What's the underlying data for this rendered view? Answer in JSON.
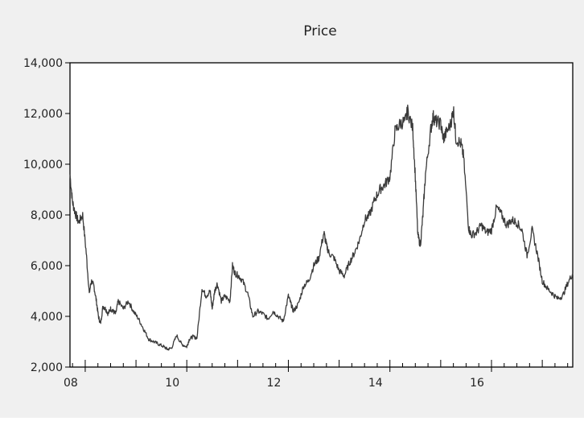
{
  "chart_data": {
    "type": "line",
    "title": "Price",
    "xlabel": "",
    "ylabel": "",
    "ylim": [
      2000,
      14000
    ],
    "xlim": [
      2007.7,
      2017.6
    ],
    "yticks": [
      2000,
      4000,
      6000,
      8000,
      10000,
      12000,
      14000
    ],
    "ytick_labels": [
      "2,000",
      "4,000",
      "6,000",
      "8,000",
      "10,000",
      "12,000",
      "14,000"
    ],
    "xticks": [
      2008,
      2010,
      2012,
      2014,
      2016
    ],
    "xtick_labels": [
      "08",
      "10",
      "12",
      "14",
      "16"
    ],
    "grid": false,
    "legend": "none",
    "colors": {
      "line": "#3a3a3a",
      "frame": "#000000",
      "panel": "#f0f0f0",
      "plot_bg": "#ffffff"
    },
    "series": [
      {
        "x": [
          2007.7,
          2007.75,
          2007.8,
          2007.87,
          2007.95,
          2008.02,
          2008.08,
          2008.12,
          2008.17,
          2008.22,
          2008.26,
          2008.3,
          2008.35,
          2008.4,
          2008.45,
          2008.5,
          2008.55,
          2008.6,
          2008.65,
          2008.75,
          2008.85,
          2008.95,
          2009.05,
          2009.15,
          2009.25,
          2009.35,
          2009.45,
          2009.55,
          2009.62,
          2009.7,
          2009.8,
          2009.9,
          2010.0,
          2010.05,
          2010.12,
          2010.2,
          2010.3,
          2010.38,
          2010.46,
          2010.5,
          2010.55,
          2010.6,
          2010.68,
          2010.75,
          2010.85,
          2010.9,
          2010.95,
          2011.02,
          2011.1,
          2011.2,
          2011.3,
          2011.4,
          2011.5,
          2011.6,
          2011.7,
          2011.8,
          2011.9,
          2012.0,
          2012.05,
          2012.1,
          2012.2,
          2012.3,
          2012.4,
          2012.5,
          2012.6,
          2012.7,
          2012.75,
          2012.8,
          2012.9,
          2013.0,
          2013.1,
          2013.2,
          2013.3,
          2013.4,
          2013.5,
          2013.6,
          2013.7,
          2013.8,
          2013.9,
          2014.0,
          2014.1,
          2014.2,
          2014.3,
          2014.35,
          2014.45,
          2014.5,
          2014.55,
          2014.6,
          2014.65,
          2014.7,
          2014.8,
          2014.85,
          2014.9,
          2015.0,
          2015.05,
          2015.1,
          2015.2,
          2015.25,
          2015.3,
          2015.4,
          2015.45,
          2015.55,
          2015.6,
          2015.7,
          2015.8,
          2015.9,
          2016.0,
          2016.1,
          2016.2,
          2016.3,
          2016.4,
          2016.5,
          2016.6,
          2016.7,
          2016.8,
          2016.9,
          2017.0,
          2017.1,
          2017.2,
          2017.3,
          2017.4,
          2017.5,
          2017.6
        ],
        "values": [
          9600,
          8500,
          8100,
          7700,
          8000,
          6500,
          4900,
          5400,
          5200,
          4600,
          4000,
          3700,
          4400,
          4300,
          4100,
          4300,
          4200,
          4100,
          4600,
          4300,
          4600,
          4200,
          3900,
          3500,
          3100,
          3000,
          2900,
          2800,
          2700,
          2750,
          3250,
          2900,
          2800,
          3100,
          3200,
          3150,
          5100,
          4800,
          5000,
          4300,
          5000,
          5300,
          4600,
          4800,
          4600,
          6000,
          5700,
          5600,
          5400,
          4900,
          4000,
          4200,
          4100,
          3900,
          4200,
          4000,
          3800,
          4800,
          4500,
          4200,
          4500,
          5200,
          5400,
          6000,
          6300,
          7300,
          6800,
          6500,
          6300,
          5800,
          5600,
          6100,
          6500,
          7000,
          7800,
          8000,
          8600,
          9000,
          9200,
          9500,
          11300,
          11600,
          11700,
          12100,
          11400,
          9500,
          7200,
          6800,
          8000,
          9600,
          11300,
          11900,
          11700,
          11600,
          11000,
          11200,
          11600,
          12200,
          11000,
          10800,
          10300,
          7500,
          7200,
          7300,
          7600,
          7300,
          7400,
          8300,
          8000,
          7600,
          7800,
          7700,
          7400,
          6400,
          7400,
          6500,
          5400,
          5100,
          4900,
          4700,
          4800,
          5300,
          5700
        ]
      }
    ]
  }
}
